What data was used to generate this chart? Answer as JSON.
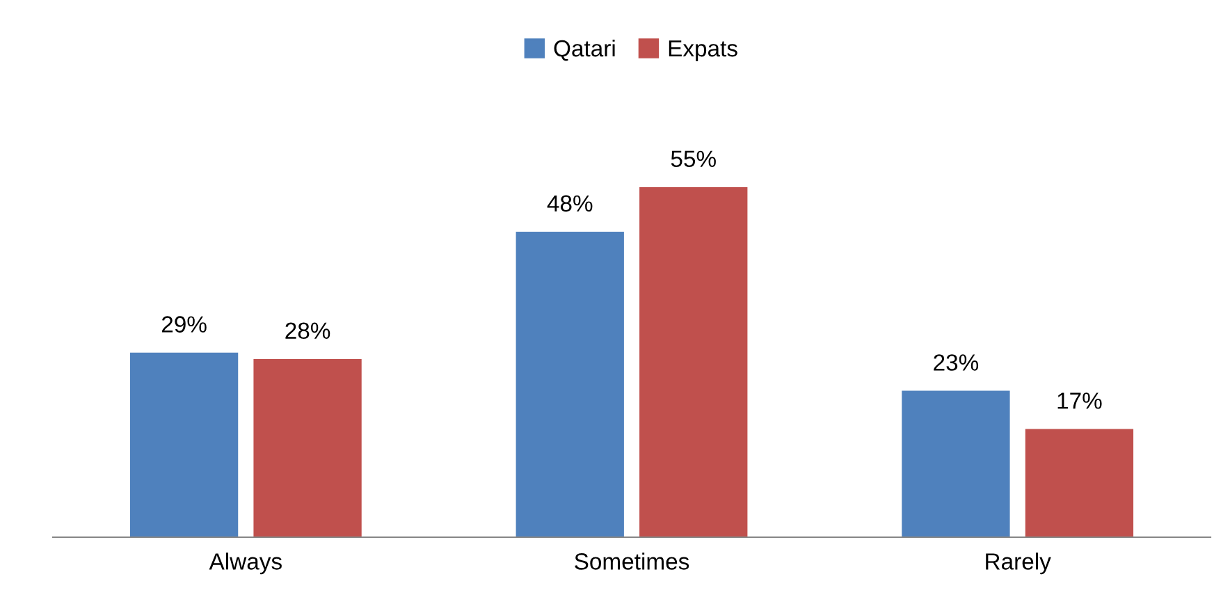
{
  "chart_data": {
    "type": "bar",
    "categories": [
      "Always",
      "Sometimes",
      "Rarely"
    ],
    "series": [
      {
        "name": "Qatari",
        "color": "#4f81bd",
        "values": [
          29,
          48,
          23
        ],
        "value_labels": [
          "29%",
          "48%",
          "23%"
        ]
      },
      {
        "name": "Expats",
        "color": "#c0504d",
        "values": [
          28,
          55,
          17
        ],
        "value_labels": [
          "28%",
          "55%",
          "17%"
        ]
      }
    ],
    "legend": "top"
  }
}
